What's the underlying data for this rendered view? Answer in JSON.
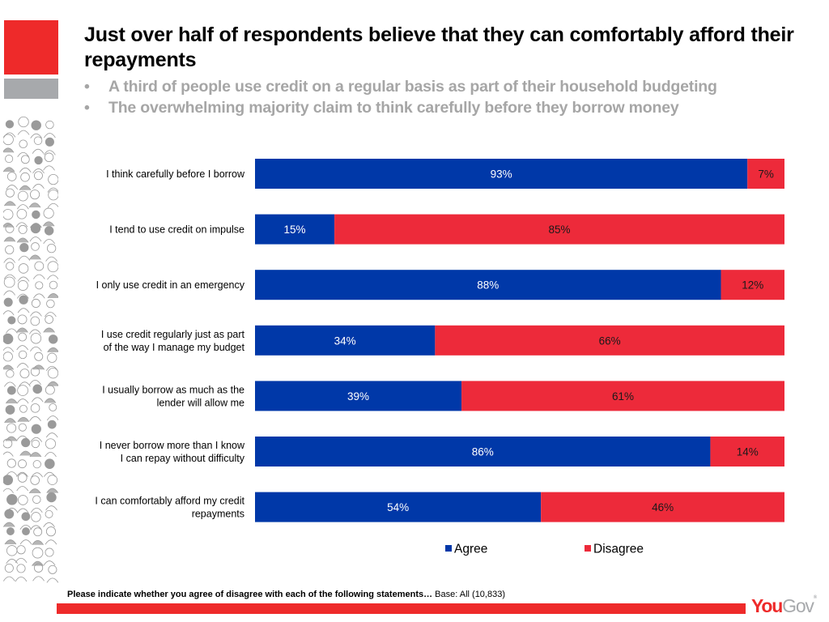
{
  "header": {
    "title": "Just over half of respondents believe that they can comfortably afford their repayments",
    "bullet_symbol": "•",
    "bullets": [
      "A third of people use credit on a regular basis as part of their household budgeting",
      "The overwhelming majority claim to think carefully before they borrow money"
    ]
  },
  "colors": {
    "agree": "#0038a8",
    "disagree": "#ed2a3a",
    "brand_red": "#ee2a2a",
    "brand_grey": "#a7a9ac",
    "subtitle_grey": "#a6a6a6"
  },
  "chart_data": {
    "type": "bar",
    "orientation": "horizontal",
    "stacked": true,
    "percent_stacked": true,
    "title": "",
    "xlabel": "",
    "ylabel": "",
    "xlim": [
      0,
      100
    ],
    "grid": false,
    "legend_position": "bottom",
    "categories": [
      [
        "I think carefully before I borrow"
      ],
      [
        "I tend to use credit on impulse"
      ],
      [
        "I only use credit in an emergency"
      ],
      [
        "I use credit regularly just as part",
        "of the way I manage my budget"
      ],
      [
        "I usually borrow as much as the",
        "lender will allow me"
      ],
      [
        "I never  borrow more than I know",
        "I can repay without difficulty"
      ],
      [
        "I can comfortably afford my credit",
        "repayments"
      ]
    ],
    "series": [
      {
        "name": "Agree",
        "color": "#0038a8",
        "label_color": "#ffffff",
        "values": [
          93,
          15,
          88,
          34,
          39,
          86,
          54
        ]
      },
      {
        "name": "Disagree",
        "color": "#ed2a3a",
        "label_color": "#1a1a1a",
        "values": [
          7,
          85,
          12,
          66,
          61,
          14,
          46
        ]
      }
    ],
    "value_suffix": "%"
  },
  "footer": {
    "question": "Please indicate whether you agree of disagree with each of the following statements…",
    "base": "Base: All (10,833)",
    "logo_you": "You",
    "logo_gov": "Gov",
    "logo_mark": "®"
  }
}
